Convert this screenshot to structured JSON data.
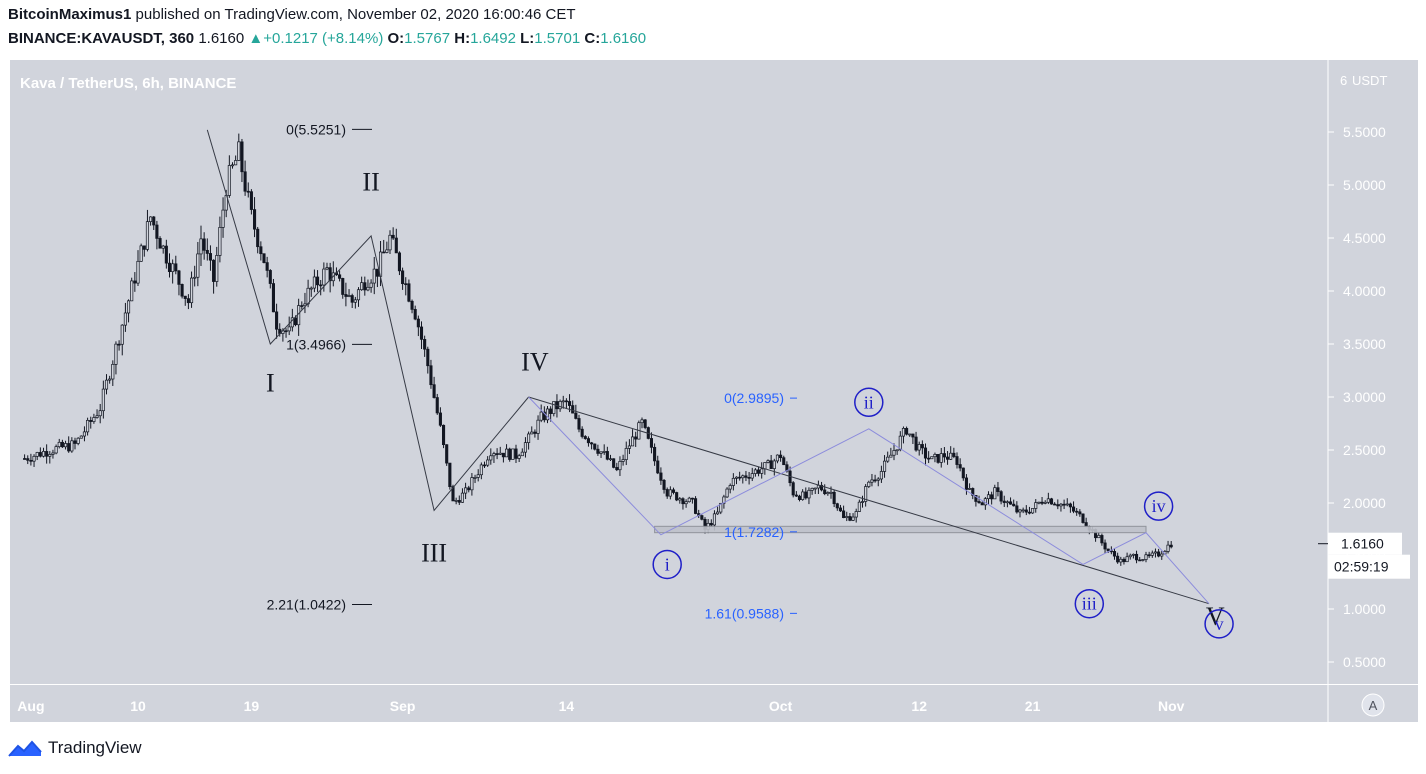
{
  "header": {
    "author": "BitcoinMaximus1",
    "published": "published on TradingView.com, November 02, 2020 16:00:46 CET",
    "symbol": "BINANCE:KAVAUSDT, 360",
    "price": "1.6160",
    "change_arrow": "▲",
    "change": "+0.1217 (+8.14%)",
    "o_label": "O:",
    "o": "1.5767",
    "h_label": "H:",
    "h": "1.6492",
    "l_label": "L:",
    "l": "1.5701",
    "c_label": "C:",
    "c": "1.6160"
  },
  "footer": {
    "brand": "TradingView"
  },
  "colors": {
    "background": "#d1d4dc",
    "candle": "#131722",
    "fib_blue": "#2962ff",
    "wave_circle": "#1f1fc8",
    "projection": "#8c8cdc"
  },
  "chart_data": {
    "type": "candlestick",
    "title": "Kava / TetherUS, 6h, BINANCE",
    "currency_label": "USDT",
    "ylim": [
      0.2,
      6.2
    ],
    "y_ticks": [
      "5.5000",
      "5.0000",
      "4.5000",
      "4.0000",
      "3.5000",
      "3.0000",
      "2.5000",
      "2.0000",
      "1.5000",
      "1.0000",
      "0.5000"
    ],
    "y_tick_values": [
      5.5,
      5.0,
      4.5,
      4.0,
      3.5,
      3.0,
      2.5,
      2.0,
      1.5,
      1.0,
      0.5
    ],
    "top_tick": "6",
    "x_range_days": [
      0,
      98
    ],
    "x_ticks": [
      {
        "label": "Aug",
        "day": 1.5
      },
      {
        "label": "10",
        "day": 10
      },
      {
        "label": "19",
        "day": 19
      },
      {
        "label": "Sep",
        "day": 31
      },
      {
        "label": "14",
        "day": 44
      },
      {
        "label": "Oct",
        "day": 61
      },
      {
        "label": "12",
        "day": 72
      },
      {
        "label": "21",
        "day": 81
      },
      {
        "label": "Nov",
        "day": 92
      }
    ],
    "price_path": [
      [
        1,
        2.42
      ],
      [
        3,
        2.5
      ],
      [
        5,
        2.55
      ],
      [
        7,
        2.9
      ],
      [
        9,
        3.8
      ],
      [
        11,
        4.7
      ],
      [
        12,
        4.4
      ],
      [
        14,
        3.9
      ],
      [
        15,
        4.5
      ],
      [
        16,
        4.1
      ],
      [
        17,
        5.0
      ],
      [
        18,
        5.3
      ],
      [
        19,
        4.7
      ],
      [
        20,
        4.3
      ],
      [
        21,
        3.7
      ],
      [
        22,
        3.6
      ],
      [
        23,
        3.9
      ],
      [
        25,
        4.2
      ],
      [
        27,
        3.9
      ],
      [
        28,
        4.1
      ],
      [
        29,
        4.2
      ],
      [
        30,
        4.5
      ],
      [
        31,
        4.15
      ],
      [
        32,
        3.8
      ],
      [
        33,
        3.3
      ],
      [
        34,
        2.7
      ],
      [
        35,
        2.0
      ],
      [
        36,
        2.1
      ],
      [
        37,
        2.3
      ],
      [
        38,
        2.5
      ],
      [
        40,
        2.45
      ],
      [
        41,
        2.6
      ],
      [
        42,
        2.8
      ],
      [
        43,
        2.9
      ],
      [
        44,
        2.95
      ],
      [
        45,
        2.7
      ],
      [
        47,
        2.45
      ],
      [
        48,
        2.3
      ],
      [
        49,
        2.55
      ],
      [
        50,
        2.75
      ],
      [
        51,
        2.4
      ],
      [
        52,
        2.1
      ],
      [
        54,
        2.0
      ],
      [
        55,
        1.75
      ],
      [
        56,
        1.9
      ],
      [
        57,
        2.2
      ],
      [
        58,
        2.25
      ],
      [
        59,
        2.3
      ],
      [
        60,
        2.35
      ],
      [
        61,
        2.45
      ],
      [
        62,
        2.1
      ],
      [
        63,
        2.05
      ],
      [
        64,
        2.15
      ],
      [
        65,
        2.1
      ],
      [
        66,
        1.85
      ],
      [
        67,
        1.9
      ],
      [
        68,
        2.2
      ],
      [
        69,
        2.3
      ],
      [
        70,
        2.5
      ],
      [
        71,
        2.7
      ],
      [
        72,
        2.5
      ],
      [
        73,
        2.4
      ],
      [
        74,
        2.45
      ],
      [
        75,
        2.4
      ],
      [
        76,
        2.1
      ],
      [
        77,
        2.0
      ],
      [
        78,
        2.1
      ],
      [
        79,
        2.0
      ],
      [
        80,
        1.9
      ],
      [
        81,
        1.95
      ],
      [
        82,
        2.05
      ],
      [
        83,
        2.0
      ],
      [
        84,
        1.95
      ],
      [
        85,
        1.85
      ],
      [
        86,
        1.7
      ],
      [
        87,
        1.55
      ],
      [
        88,
        1.45
      ],
      [
        89,
        1.5
      ],
      [
        90,
        1.48
      ],
      [
        91,
        1.52
      ],
      [
        92,
        1.62
      ]
    ],
    "wave_labels": [
      {
        "label": "I",
        "day": 20.5,
        "price": 3.05
      },
      {
        "label": "II",
        "day": 28.5,
        "price": 4.95
      },
      {
        "label": "III",
        "day": 33.5,
        "price": 1.45
      },
      {
        "label": "IV",
        "day": 41.5,
        "price": 3.25
      },
      {
        "label": "V",
        "day": 95.5,
        "price": 0.85
      }
    ],
    "wave_lines": [
      [
        15.5,
        5.52
      ],
      [
        20.5,
        3.5
      ],
      [
        28.5,
        4.52
      ],
      [
        33.5,
        1.93
      ],
      [
        41,
        3.0
      ]
    ],
    "subwaves": [
      {
        "label": "i",
        "day": 52,
        "price": 1.42
      },
      {
        "label": "ii",
        "day": 68,
        "price": 2.95
      },
      {
        "label": "iii",
        "day": 85.5,
        "price": 1.05
      },
      {
        "label": "iv",
        "day": 91,
        "price": 1.97
      },
      {
        "label": "v",
        "day": 95.8,
        "price": 0.86
      }
    ],
    "subwave_lines": [
      [
        41,
        3.0
      ],
      [
        51.5,
        1.7
      ],
      [
        68,
        2.7
      ],
      [
        85,
        1.42
      ],
      [
        90,
        1.72
      ],
      [
        95,
        1.05
      ]
    ],
    "trendline": [
      [
        41,
        3.0
      ],
      [
        95,
        1.05
      ]
    ],
    "resistance_zone": {
      "from_day": 51,
      "to_day": 90,
      "top": 1.78,
      "bottom": 1.72
    },
    "fib_left": [
      {
        "label": "0(5.5251)",
        "value": 5.5251
      },
      {
        "label": "1(3.4966)",
        "value": 3.4966
      },
      {
        "label": "2.21(1.0422)",
        "value": 1.0422
      }
    ],
    "fib_right": [
      {
        "label": "0(2.9895)",
        "value": 2.9895
      },
      {
        "label": "1(1.7282)",
        "value": 1.7282
      },
      {
        "label": "1.61(0.9588)",
        "value": 0.9588
      }
    ],
    "last_price": "1.6160",
    "last_price_value": 1.616,
    "countdown": "02:59:19",
    "axis_button": "A"
  }
}
